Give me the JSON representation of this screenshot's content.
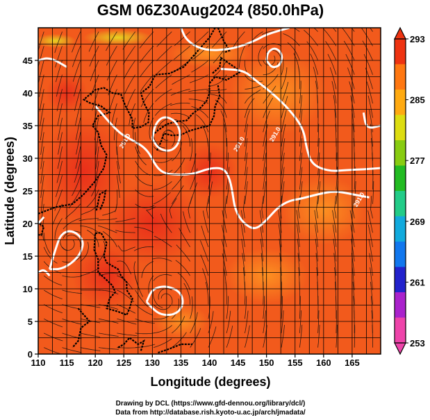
{
  "chart_data": {
    "type": "heatmap",
    "title": "GSM 06Z30Aug2024 (850.0hPa)",
    "xlabel": "Longitude (degrees)",
    "ylabel": "Latitude  (degrees)",
    "xlim": [
      110,
      170
    ],
    "ylim": [
      0,
      50
    ],
    "x_ticks": [
      "110",
      "115",
      "120",
      "125",
      "130",
      "135",
      "140",
      "145",
      "150",
      "155",
      "160",
      "165"
    ],
    "y_ticks": [
      "0",
      "5",
      "10",
      "15",
      "20",
      "25",
      "30",
      "35",
      "40",
      "45"
    ],
    "x_tick_values": [
      110,
      115,
      120,
      125,
      130,
      135,
      140,
      145,
      150,
      155,
      160,
      165
    ],
    "y_tick_values": [
      0,
      5,
      10,
      15,
      20,
      25,
      30,
      35,
      40,
      45
    ],
    "grid": true,
    "colorbar": {
      "range": [
        253,
        293
      ],
      "labels": [
        "293",
        "285",
        "277",
        "269",
        "261",
        "253"
      ],
      "label_values": [
        293,
        285,
        277,
        269,
        261,
        253
      ],
      "position": "right",
      "colors": [
        "#ee44aa",
        "#aa22cc",
        "#2222cc",
        "#1177ee",
        "#11aadd",
        "#22cc88",
        "#22bb22",
        "#88cc11",
        "#dddd11",
        "#ffaa11",
        "#ff7711",
        "#ee3311"
      ]
    },
    "contour_label": "291.0",
    "contour_labels_shown": [
      {
        "text": "291.0",
        "lon": 125.5,
        "lat": 32.5
      },
      {
        "text": "291.0",
        "lon": 151.8,
        "lat": 33.5
      },
      {
        "text": "291.0",
        "lon": 145.5,
        "lat": 32.0
      },
      {
        "text": "291.0",
        "lon": 166.5,
        "lat": 23.5
      }
    ],
    "contour_color": "#ffffff",
    "cyclone_centers": [
      {
        "lon": 132.5,
        "lat": 33.5
      },
      {
        "lon": 115.0,
        "lat": 17.0
      },
      {
        "lon": 132.5,
        "lat": 8.0
      },
      {
        "lon": 151.0,
        "lat": 45.5
      }
    ]
  },
  "credits": {
    "line1": "Drawing by DCL (https://www.gfd-dennou.org/library/dcl/)",
    "line2": "Data from http://database.rish.kyoto-u.ac.jp/arch/jmadata/"
  }
}
